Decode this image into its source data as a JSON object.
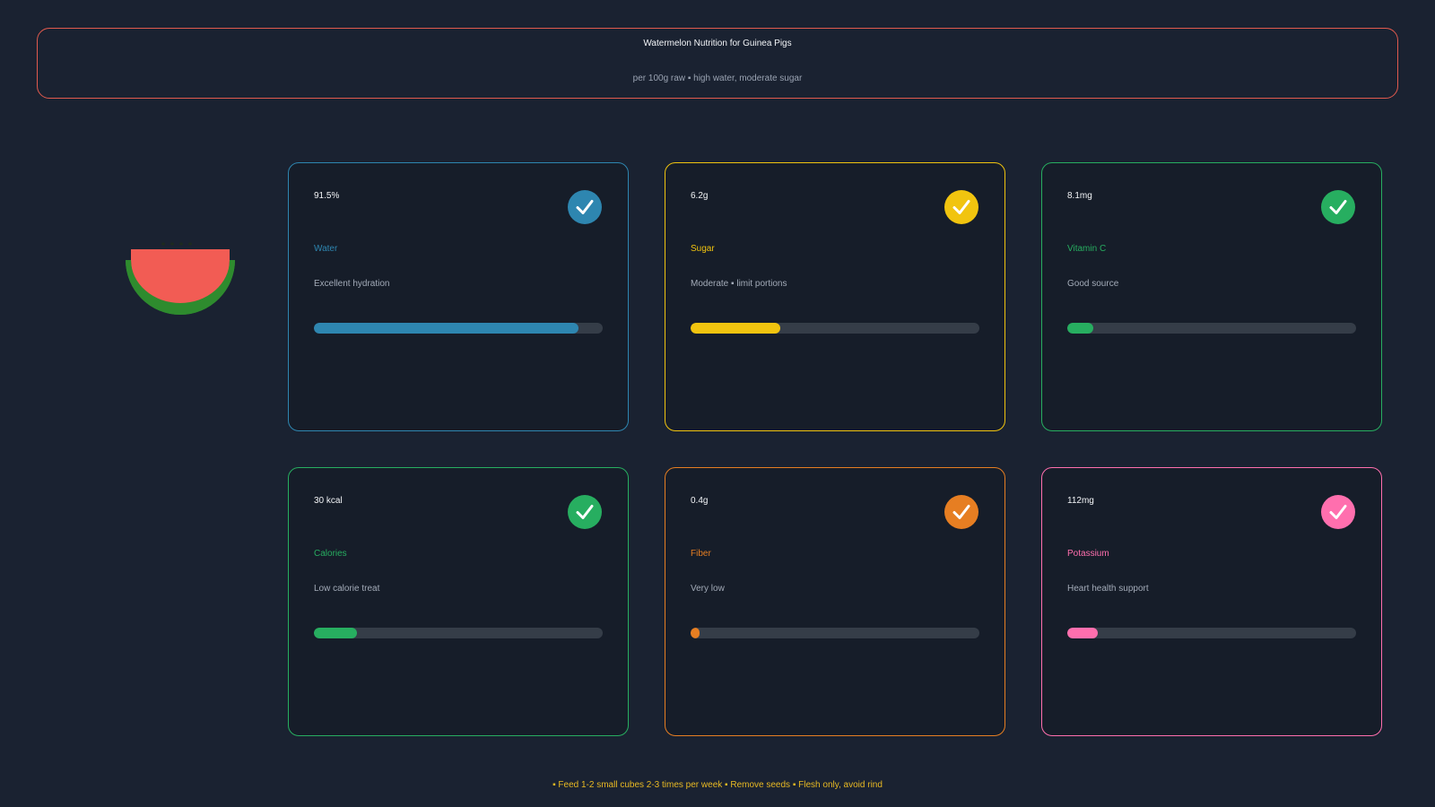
{
  "header": {
    "title": "Watermelon Nutrition for Guinea Pigs",
    "subtitle": "per 100g raw ▪ high water, moderate sugar"
  },
  "illustration": {
    "icon": "watermelon-slice-icon",
    "flesh_color": "#f25c54",
    "rind_color": "#2e8b2e",
    "seed_color": "#1d2a20"
  },
  "cards": [
    {
      "value": "91.5%",
      "label": "Water",
      "desc": "Excellent hydration",
      "color": "#2e86b0",
      "level": 0.915,
      "icon": "check-icon"
    },
    {
      "value": "6.2g",
      "label": "Sugar",
      "desc": "Moderate ▪ limit portions",
      "color": "#f1c40f",
      "level": 0.31,
      "icon": "check-icon"
    },
    {
      "value": "8.1mg",
      "label": "Vitamin C",
      "desc": "Good source",
      "color": "#27ae60",
      "level": 0.09,
      "icon": "check-icon"
    },
    {
      "value": "30 kcal",
      "label": "Calories",
      "desc": "Low calorie treat",
      "color": "#27ae60",
      "level": 0.15,
      "icon": "check-icon"
    },
    {
      "value": "0.4g",
      "label": "Fiber",
      "desc": "Very low",
      "color": "#e67e22",
      "level": 0.02,
      "icon": "check-icon"
    },
    {
      "value": "112mg",
      "label": "Potassium",
      "desc": "Heart health support",
      "color": "#ff6fae",
      "level": 0.105,
      "icon": "check-icon"
    }
  ],
  "footer": {
    "tips": "▪ Feed 1-2 small cubes 2-3 times per week ▪ Remove seeds ▪ Flesh only, avoid rind"
  },
  "colors": {
    "background": "#1a2231",
    "header_border": "#e15a4e",
    "footer_text": "#e8b923",
    "bar_track": "#353d48"
  }
}
